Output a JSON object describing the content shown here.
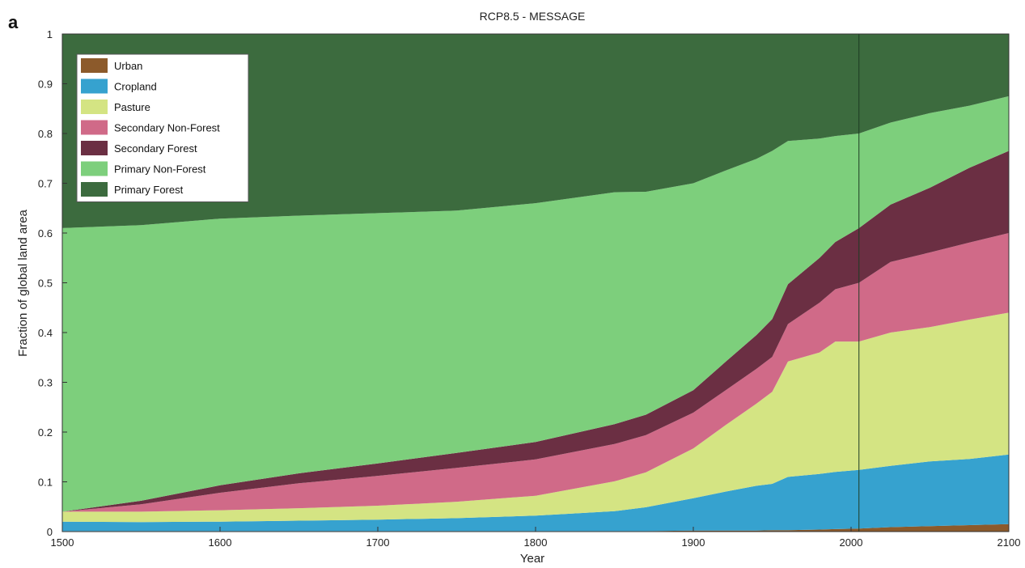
{
  "panel_label": "a",
  "chart_data": {
    "type": "area",
    "title": "RCP8.5 - MESSAGE",
    "xlabel": "Year",
    "ylabel": "Fraction of global land area",
    "xlim": [
      1500,
      2100
    ],
    "ylim": [
      0,
      1
    ],
    "xticks": [
      1500,
      1600,
      1700,
      1800,
      1900,
      2000,
      2100
    ],
    "yticks": [
      0,
      0.1,
      0.2,
      0.3,
      0.4,
      0.5,
      0.6,
      0.7,
      0.8,
      0.9,
      1
    ],
    "grid": false,
    "stacked": true,
    "legend_position": "top-left",
    "reference_line_x": 2005,
    "x": [
      1500,
      1550,
      1600,
      1650,
      1700,
      1750,
      1800,
      1850,
      1870,
      1900,
      1920,
      1940,
      1950,
      1960,
      1980,
      1990,
      2005,
      2025,
      2050,
      2075,
      2100
    ],
    "series": [
      {
        "name": "Urban",
        "color": "#8c5a2b",
        "values": [
          0.001,
          0.001,
          0.001,
          0.001,
          0.001,
          0.001,
          0.001,
          0.001,
          0.001,
          0.002,
          0.002,
          0.002,
          0.003,
          0.003,
          0.004,
          0.005,
          0.006,
          0.009,
          0.011,
          0.013,
          0.015
        ]
      },
      {
        "name": "Cropland",
        "color": "#36a2cf",
        "values": [
          0.019,
          0.018,
          0.019,
          0.021,
          0.023,
          0.026,
          0.031,
          0.04,
          0.048,
          0.065,
          0.078,
          0.09,
          0.093,
          0.107,
          0.112,
          0.115,
          0.118,
          0.123,
          0.13,
          0.133,
          0.14
        ]
      },
      {
        "name": "Pasture",
        "color": "#d4e483",
        "values": [
          0.02,
          0.021,
          0.023,
          0.025,
          0.028,
          0.033,
          0.04,
          0.06,
          0.07,
          0.1,
          0.133,
          0.165,
          0.185,
          0.232,
          0.244,
          0.262,
          0.258,
          0.268,
          0.27,
          0.28,
          0.285
        ]
      },
      {
        "name": "Secondary Non-Forest",
        "color": "#d06a88",
        "values": [
          0.0,
          0.015,
          0.035,
          0.05,
          0.06,
          0.068,
          0.073,
          0.075,
          0.075,
          0.072,
          0.07,
          0.07,
          0.07,
          0.075,
          0.1,
          0.105,
          0.118,
          0.142,
          0.15,
          0.155,
          0.16
        ]
      },
      {
        "name": "Secondary Forest",
        "color": "#6b2f43",
        "values": [
          0.0,
          0.007,
          0.015,
          0.02,
          0.025,
          0.03,
          0.035,
          0.04,
          0.041,
          0.045,
          0.057,
          0.068,
          0.076,
          0.08,
          0.09,
          0.095,
          0.11,
          0.115,
          0.13,
          0.15,
          0.165
        ]
      },
      {
        "name": "Primary Non-Forest",
        "color": "#7dcf7c",
        "values": [
          0.57,
          0.554,
          0.536,
          0.518,
          0.503,
          0.487,
          0.48,
          0.466,
          0.448,
          0.416,
          0.385,
          0.354,
          0.338,
          0.288,
          0.24,
          0.213,
          0.19,
          0.165,
          0.15,
          0.125,
          0.11
        ]
      },
      {
        "name": "Primary Forest",
        "color": "#3c6b3e",
        "values": [
          0.39,
          0.384,
          0.371,
          0.365,
          0.36,
          0.355,
          0.34,
          0.318,
          0.317,
          0.3,
          0.275,
          0.251,
          0.235,
          0.215,
          0.21,
          0.205,
          0.2,
          0.178,
          0.159,
          0.144,
          0.125
        ]
      }
    ]
  },
  "legend_order": [
    "Urban",
    "Cropland",
    "Pasture",
    "Secondary Non-Forest",
    "Secondary Forest",
    "Primary Non-Forest",
    "Primary Forest"
  ]
}
